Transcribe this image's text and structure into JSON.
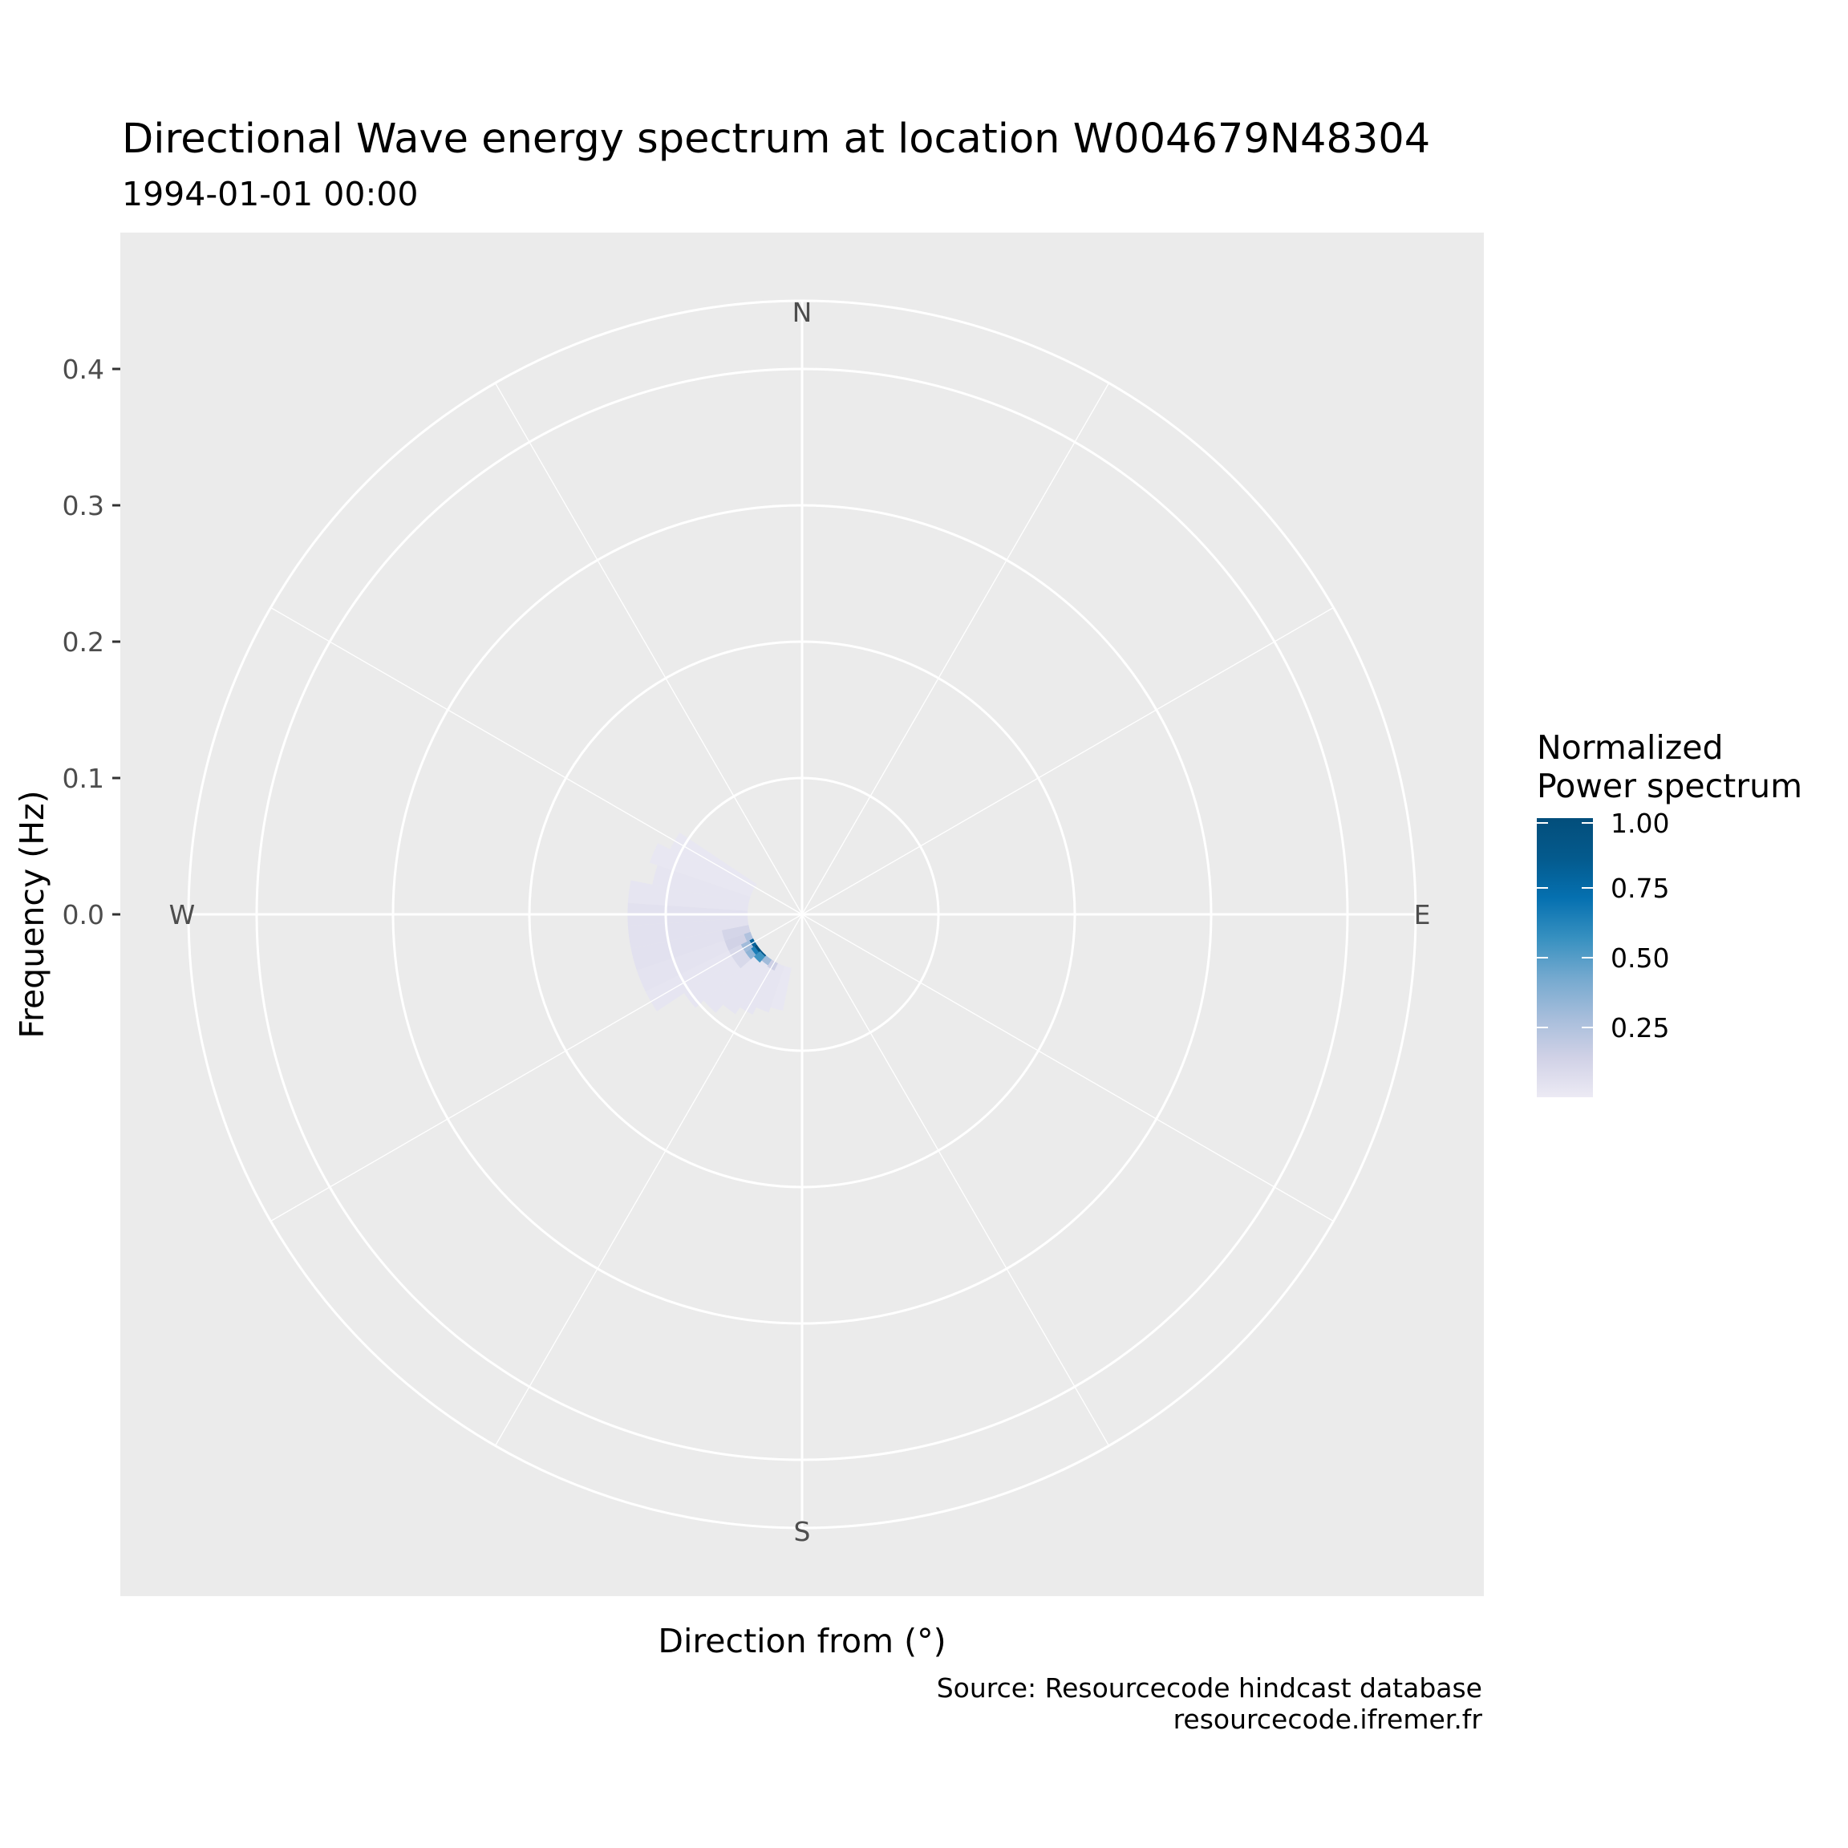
{
  "chart_data": {
    "type": "heatmap",
    "projection": "polar",
    "title": "Directional Wave energy spectrum at location W004679N48304",
    "subtitle": "1994-01-01 00:00",
    "xlabel": "Direction from (°)",
    "ylabel": "Frequency (Hz)",
    "caption_lines": [
      "Source: Resourcecode hindcast database",
      "resourcecode.ifremer.fr"
    ],
    "direction_labels": [
      {
        "label": "N",
        "deg": 0
      },
      {
        "label": "E",
        "deg": 90
      },
      {
        "label": "S",
        "deg": 180
      },
      {
        "label": "W",
        "deg": 270
      }
    ],
    "radial_ticks": [
      {
        "value": 0.0,
        "label": "0.0"
      },
      {
        "value": 0.1,
        "label": "0.1"
      },
      {
        "value": 0.2,
        "label": "0.2"
      },
      {
        "value": 0.3,
        "label": "0.3"
      },
      {
        "value": 0.4,
        "label": "0.4"
      }
    ],
    "radial_grid": [
      0.1,
      0.2,
      0.3,
      0.4,
      0.45
    ],
    "angular_major_deg": [
      0,
      90,
      180,
      270
    ],
    "angular_minor_deg": [
      30,
      60,
      120,
      150,
      210,
      240,
      300,
      330
    ],
    "rlim": [
      0,
      0.45
    ],
    "grid": true,
    "legend": {
      "title_lines": [
        "Normalized",
        "Power spectrum"
      ],
      "position": "right",
      "limits": [
        0,
        1
      ],
      "breaks": [
        0.25,
        0.5,
        0.75,
        1.0
      ],
      "labels": [
        "0.25",
        "0.50",
        "0.75",
        "1.00"
      ],
      "colors": [
        "#ECEAF4",
        "#D0D1E6",
        "#A6BDDB",
        "#74A9CF",
        "#3690C0",
        "#0570B0",
        "#045A8D",
        "#034E7B"
      ]
    },
    "colors": {
      "panel_background": "#EBEBEB",
      "grid_line": "#FFFFFF"
    },
    "cells": [
      {
        "dir": 240,
        "f_min": 0.04,
        "f_max": 0.128,
        "value": 0.03
      },
      {
        "dir": 247.5,
        "f_min": 0.04,
        "f_max": 0.128,
        "value": 0.04
      },
      {
        "dir": 255,
        "f_min": 0.04,
        "f_max": 0.128,
        "value": 0.05
      },
      {
        "dir": 262.5,
        "f_min": 0.04,
        "f_max": 0.128,
        "value": 0.05
      },
      {
        "dir": 270,
        "f_min": 0.04,
        "f_max": 0.128,
        "value": 0.05
      },
      {
        "dir": 277.5,
        "f_min": 0.04,
        "f_max": 0.128,
        "value": 0.03
      },
      {
        "dir": 285,
        "f_min": 0.04,
        "f_max": 0.112,
        "value": 0.03
      },
      {
        "dir": 292.5,
        "f_min": 0.04,
        "f_max": 0.118,
        "value": 0.02
      },
      {
        "dir": 300,
        "f_min": 0.04,
        "f_max": 0.108,
        "value": 0.02
      },
      {
        "dir": 232.5,
        "f_min": 0.04,
        "f_max": 0.104,
        "value": 0.03
      },
      {
        "dir": 225,
        "f_min": 0.04,
        "f_max": 0.096,
        "value": 0.03
      },
      {
        "dir": 217.5,
        "f_min": 0.04,
        "f_max": 0.088,
        "value": 0.03
      },
      {
        "dir": 210,
        "f_min": 0.04,
        "f_max": 0.082,
        "value": 0.03
      },
      {
        "dir": 202.5,
        "f_min": 0.04,
        "f_max": 0.076,
        "value": 0.03
      },
      {
        "dir": 195,
        "f_min": 0.04,
        "f_max": 0.072,
        "value": 0.02
      },
      {
        "dir": 240,
        "f_min": 0.04,
        "f_max": 0.06,
        "value": 0.1
      },
      {
        "dir": 247.5,
        "f_min": 0.04,
        "f_max": 0.06,
        "value": 0.14
      },
      {
        "dir": 255,
        "f_min": 0.04,
        "f_max": 0.06,
        "value": 0.12
      },
      {
        "dir": 232.5,
        "f_min": 0.04,
        "f_max": 0.06,
        "value": 0.1
      },
      {
        "dir": 240,
        "f_min": 0.04,
        "f_max": 0.05,
        "value": 0.3
      },
      {
        "dir": 232.5,
        "f_min": 0.04,
        "f_max": 0.05,
        "value": 0.35
      },
      {
        "dir": 232.5,
        "f_min": 0.04,
        "f_max": 0.045,
        "value": 0.65
      },
      {
        "dir": 225,
        "f_min": 0.04,
        "f_max": 0.047,
        "value": 0.55
      },
      {
        "dir": 217.5,
        "f_min": 0.04,
        "f_max": 0.045,
        "value": 0.3
      },
      {
        "dir": 232.5,
        "f_min": 0.04,
        "f_max": 0.042,
        "value": 1.0
      },
      {
        "dir": 240,
        "f_min": 0.04,
        "f_max": 0.043,
        "value": 0.8
      },
      {
        "dir": 225,
        "f_min": 0.04,
        "f_max": 0.041,
        "value": 0.9
      },
      {
        "dir": 247.5,
        "f_min": 0.04,
        "f_max": 0.045,
        "value": 0.25
      },
      {
        "dir": 210,
        "f_min": 0.04,
        "f_max": 0.046,
        "value": 0.15
      }
    ]
  }
}
